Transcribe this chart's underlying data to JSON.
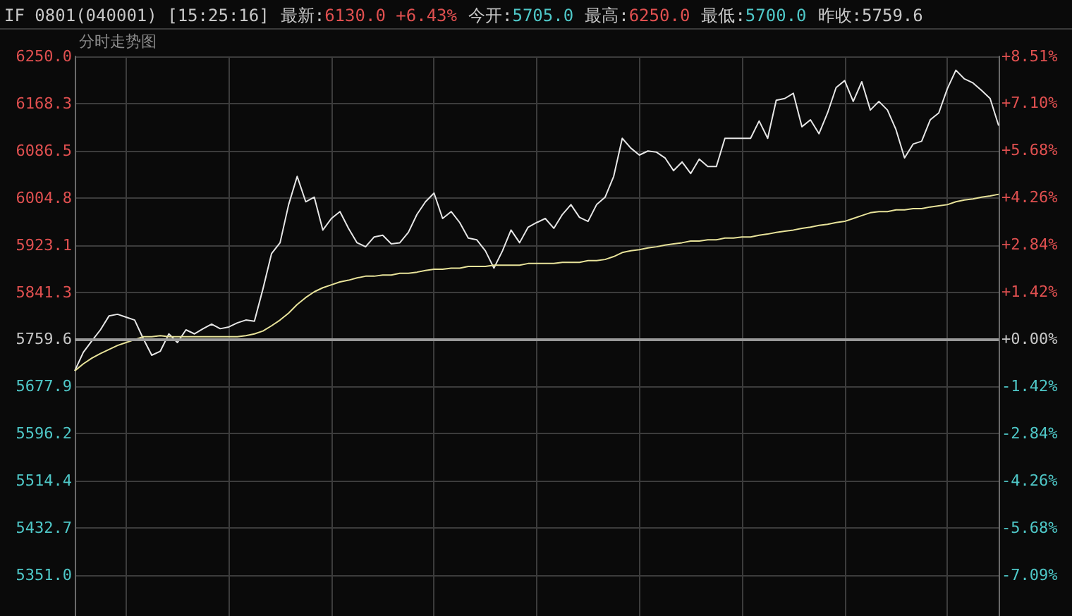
{
  "chart_data": {
    "type": "line",
    "title": "IF  0801(040001) [15:25:16]",
    "subtitle": "分时走势图",
    "annotations": [
      "最新:6130.0 +6.43%",
      "今开:5705.0",
      "最高:6250.0",
      "最低:5700.0",
      "昨收:5759.6"
    ],
    "categories": [
      null,
      null,
      null,
      null,
      null,
      null,
      null,
      null,
      null,
      null,
      null,
      null,
      null,
      null,
      null,
      null,
      null,
      null,
      null,
      null,
      null,
      null,
      null,
      null,
      null,
      null,
      null,
      null,
      null,
      null,
      null,
      null,
      null,
      null,
      null,
      null,
      null,
      null,
      null,
      null,
      null,
      null,
      null,
      null,
      null,
      null,
      null,
      null,
      null,
      null,
      null,
      null,
      null,
      null,
      null,
      null,
      null,
      null,
      null,
      null,
      null,
      null,
      null,
      null,
      null,
      null,
      null,
      null,
      null,
      null,
      null,
      null,
      null,
      null,
      null,
      null,
      null,
      null,
      null,
      null,
      null,
      null,
      null,
      null,
      null,
      null,
      null,
      null,
      null,
      null,
      null,
      null,
      null,
      null,
      null,
      null,
      null,
      null,
      null,
      null,
      null,
      null,
      null,
      null,
      null,
      null,
      null,
      null,
      null
    ],
    "series": [
      {
        "color": "#e6e6e6",
        "values": [
          5705,
          5737,
          5757,
          5776,
          5800,
          5803,
          5798,
          5793,
          5761,
          5732,
          5739,
          5769,
          5754,
          5776,
          5769,
          5778,
          5786,
          5778,
          5781,
          5788,
          5793,
          5791,
          5847,
          5908,
          5927,
          5993,
          6042,
          5998,
          6006,
          5949,
          5969,
          5981,
          5952,
          5927,
          5920,
          5937,
          5940,
          5925,
          5927,
          5945,
          5976,
          5998,
          6013,
          5969,
          5981,
          5962,
          5935,
          5932,
          5913,
          5883,
          5913,
          5949,
          5927,
          5954,
          5962,
          5969,
          5952,
          5976,
          5993,
          5971,
          5964,
          5993,
          6006,
          6042,
          6108,
          6091,
          6079,
          6086,
          6084,
          6074,
          6052,
          6067,
          6047,
          6072,
          6059,
          6059,
          6108,
          6108,
          6108,
          6108,
          6138,
          6108,
          6174,
          6177,
          6186,
          6128,
          6140,
          6116,
          6152,
          6196,
          6208,
          6172,
          6206,
          6157,
          6172,
          6157,
          6123,
          6074,
          6098,
          6103,
          6140,
          6152,
          6194,
          6226,
          6211,
          6204,
          6191,
          6177,
          6130
        ]
      },
      {
        "color": "#e8e39a",
        "values": [
          5705,
          5717,
          5727,
          5735,
          5742,
          5749,
          5754,
          5759,
          5764,
          5764,
          5766,
          5764,
          5764,
          5764,
          5764,
          5764,
          5764,
          5764,
          5764,
          5764,
          5766,
          5769,
          5774,
          5783,
          5793,
          5805,
          5820,
          5832,
          5842,
          5849,
          5854,
          5859,
          5862,
          5866,
          5869,
          5869,
          5871,
          5871,
          5874,
          5874,
          5876,
          5879,
          5881,
          5881,
          5883,
          5883,
          5886,
          5886,
          5886,
          5888,
          5888,
          5888,
          5888,
          5891,
          5891,
          5891,
          5891,
          5893,
          5893,
          5893,
          5896,
          5896,
          5898,
          5903,
          5910,
          5913,
          5915,
          5918,
          5920,
          5923,
          5925,
          5927,
          5930,
          5930,
          5932,
          5932,
          5935,
          5935,
          5937,
          5937,
          5940,
          5942,
          5945,
          5947,
          5949,
          5952,
          5954,
          5957,
          5959,
          5962,
          5964,
          5969,
          5974,
          5979,
          5981,
          5981,
          5984,
          5984,
          5986,
          5986,
          5989,
          5991,
          5993,
          5998,
          6001,
          6003,
          6006,
          6008,
          6011
        ]
      }
    ],
    "ylim": [
      5280,
      6250
    ],
    "yticks": [
      {
        "value": 6250,
        "label": "6250.0"
      },
      {
        "value": 6168.3,
        "label": "6168.3"
      },
      {
        "value": 6086.5,
        "label": "6086.5"
      },
      {
        "value": 6004.8,
        "label": "6004.8"
      },
      {
        "value": 5923.1,
        "label": "5923.1"
      },
      {
        "value": 5841.3,
        "label": "5841.3"
      },
      {
        "value": 5759.6,
        "label": "5759.6"
      },
      {
        "value": 5677.9,
        "label": "5677.9"
      },
      {
        "value": 5596.2,
        "label": "5596.2"
      },
      {
        "value": 5514.4,
        "label": "5514.4"
      },
      {
        "value": 5432.7,
        "label": "5432.7"
      },
      {
        "value": 5351,
        "label": "5351.0"
      }
    ],
    "y2lim": [
      -8.33,
      8.51
    ],
    "y2ticks": [
      {
        "value": 8.51,
        "label": "+8.51%"
      },
      {
        "value": 7.1,
        "label": "+7.10%"
      },
      {
        "value": 5.68,
        "label": "+5.68%"
      },
      {
        "value": 4.26,
        "label": "+4.26%"
      },
      {
        "value": 2.84,
        "label": "+2.84%"
      },
      {
        "value": 1.42,
        "label": "+1.42%"
      },
      {
        "value": 0,
        "label": "+0.00%"
      },
      {
        "value": -1.42,
        "label": "-1.42%"
      },
      {
        "value": -2.84,
        "label": "-2.84%"
      },
      {
        "value": -4.26,
        "label": "-4.26%"
      },
      {
        "value": -5.68,
        "label": "-5.68%"
      },
      {
        "value": -7.09,
        "label": "-7.09%"
      }
    ],
    "ref_lines": [
      {
        "axis": "y",
        "value": 5759.6,
        "color": "#9a9a9a"
      }
    ],
    "grid": true,
    "tick_labels": "y"
  }
}
